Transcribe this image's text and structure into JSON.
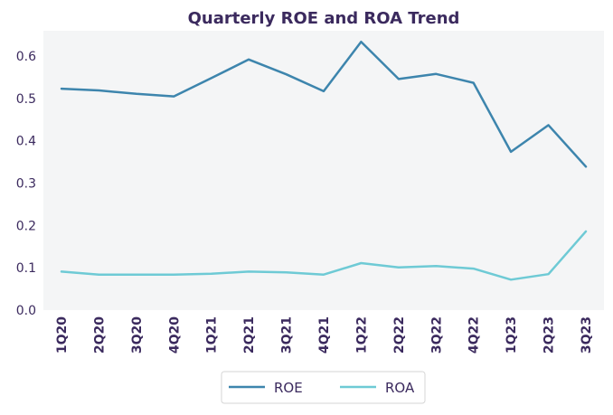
{
  "chart_data": {
    "type": "line",
    "title": "Quarterly ROE and ROA Trend",
    "xlabel": "",
    "ylabel": "",
    "categories": [
      "1Q20",
      "2Q20",
      "3Q20",
      "4Q20",
      "1Q21",
      "2Q21",
      "3Q21",
      "4Q21",
      "1Q22",
      "2Q22",
      "3Q22",
      "4Q22",
      "1Q23",
      "2Q23",
      "3Q23"
    ],
    "series": [
      {
        "name": "ROE",
        "color": "#3d85ad",
        "values": [
          0.523,
          0.519,
          0.511,
          0.505,
          0.548,
          0.592,
          0.557,
          0.517,
          0.634,
          0.546,
          0.558,
          0.537,
          0.374,
          0.437,
          0.339
        ]
      },
      {
        "name": "ROA",
        "color": "#6ecad5",
        "values": [
          0.091,
          0.084,
          0.084,
          0.084,
          0.086,
          0.091,
          0.089,
          0.084,
          0.111,
          0.101,
          0.104,
          0.098,
          0.072,
          0.085,
          0.186
        ]
      }
    ],
    "yticks": [
      "0.0",
      "0.1",
      "0.2",
      "0.3",
      "0.4",
      "0.5",
      "0.6"
    ],
    "ylim": [
      0,
      0.66
    ],
    "grid": false,
    "legend_position": "bottom-center",
    "colors": {
      "plot_background": "#f4f5f6",
      "text": "#3b2a5e"
    }
  }
}
